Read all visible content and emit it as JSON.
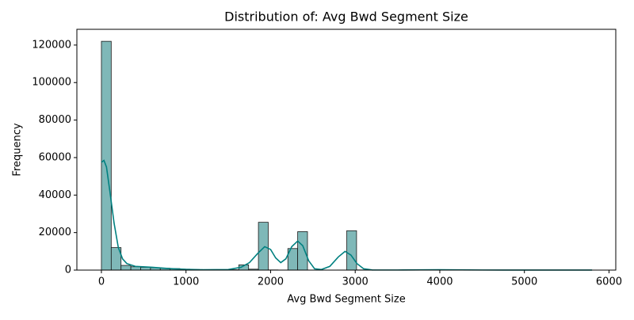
{
  "chart_data": {
    "type": "histogram",
    "title": "Distribution of: Avg Bwd Segment Size",
    "x_label": "Avg Bwd Segment Size",
    "y_label": "Frequency",
    "bins": [
      0,
      116,
      232,
      348,
      464,
      580,
      696,
      812,
      928,
      1044,
      1160,
      1276,
      1392,
      1508,
      1624,
      1740,
      1856,
      1972,
      2088,
      2204,
      2320,
      2436,
      2552,
      2668,
      2784,
      2900,
      3016,
      3132,
      3248,
      3364,
      3480,
      3596,
      3712,
      3828,
      3944,
      4060,
      4176,
      4292,
      4408,
      4524,
      4640,
      4756,
      4872,
      4988,
      5104,
      5220,
      5336,
      5452,
      5568,
      5684,
      5800
    ],
    "values": [
      122000,
      12000,
      2500,
      1800,
      1500,
      1300,
      1000,
      800,
      500,
      300,
      200,
      150,
      100,
      200,
      2800,
      500,
      25500,
      100,
      50,
      11500,
      20500,
      50,
      30,
      20,
      50,
      21000,
      100,
      50,
      30,
      20,
      20,
      20,
      20,
      20,
      200,
      50,
      20,
      20,
      20,
      20,
      20,
      20,
      20,
      20,
      20,
      20,
      20,
      20,
      20,
      20
    ],
    "color": "#7fb8b8",
    "edge_color": "#1a1a1a",
    "kde": {
      "color": "#008080",
      "x": [
        0,
        30,
        60,
        100,
        150,
        200,
        250,
        300,
        400,
        600,
        800,
        1000,
        1200,
        1500,
        1650,
        1750,
        1850,
        1930,
        2000,
        2060,
        2120,
        2180,
        2250,
        2320,
        2380,
        2450,
        2520,
        2600,
        2700,
        2800,
        2880,
        2950,
        3020,
        3100,
        3200,
        3500,
        4000,
        4500,
        5000,
        5800
      ],
      "y": [
        57500,
        58500,
        55000,
        42000,
        25000,
        12000,
        6000,
        3500,
        2000,
        1500,
        800,
        400,
        200,
        300,
        1500,
        4000,
        9000,
        12500,
        11000,
        6500,
        4000,
        6000,
        12500,
        15500,
        13000,
        5000,
        700,
        300,
        2000,
        7000,
        10000,
        8000,
        3500,
        700,
        100,
        50,
        200,
        50,
        30,
        20
      ]
    },
    "xlim": [
      -290,
      6080
    ],
    "ylim": [
      0,
      128400
    ],
    "xticks": [
      0,
      1000,
      2000,
      3000,
      4000,
      5000,
      6000
    ],
    "yticks": [
      0,
      20000,
      40000,
      60000,
      80000,
      100000,
      120000
    ]
  }
}
